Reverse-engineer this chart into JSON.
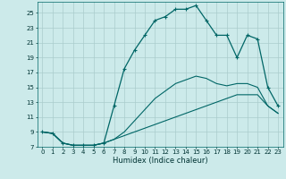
{
  "xlabel": "Humidex (Indice chaleur)",
  "bg_color": "#cceaea",
  "grid_color": "#aacccc",
  "line_color": "#006666",
  "xlim": [
    -0.5,
    23.5
  ],
  "ylim": [
    7,
    26.5
  ],
  "yticks": [
    7,
    9,
    11,
    13,
    15,
    17,
    19,
    21,
    23,
    25
  ],
  "xticks": [
    0,
    1,
    2,
    3,
    4,
    5,
    6,
    7,
    8,
    9,
    10,
    11,
    12,
    13,
    14,
    15,
    16,
    17,
    18,
    19,
    20,
    21,
    22,
    23
  ],
  "curve_top_x": [
    0,
    1,
    2,
    3,
    4,
    5,
    6,
    7,
    8,
    9,
    10,
    11,
    12,
    13,
    14,
    15,
    16,
    17,
    18,
    19,
    20,
    21,
    22,
    23
  ],
  "curve_top_y": [
    9,
    8.8,
    7.5,
    7.2,
    7.2,
    7.2,
    7.5,
    12.5,
    17.5,
    20.0,
    22.0,
    24.0,
    24.5,
    25.5,
    25.5,
    26.0,
    24.0,
    22.0,
    22.0,
    19.0,
    22.0,
    21.5,
    15.0,
    12.5
  ],
  "curve_mid_x": [
    0,
    1,
    2,
    3,
    4,
    5,
    6,
    7,
    8,
    9,
    10,
    11,
    12,
    13,
    14,
    15,
    16,
    17,
    18,
    19,
    20,
    21,
    22,
    23
  ],
  "curve_mid_y": [
    9,
    8.8,
    7.5,
    7.2,
    7.2,
    7.2,
    7.5,
    8.0,
    9.0,
    10.5,
    12.0,
    13.5,
    14.5,
    15.5,
    16.0,
    16.5,
    16.2,
    15.5,
    15.2,
    15.5,
    15.5,
    15.0,
    12.5,
    11.5
  ],
  "curve_bot_x": [
    0,
    1,
    2,
    3,
    4,
    5,
    6,
    7,
    8,
    9,
    10,
    11,
    12,
    13,
    14,
    15,
    16,
    17,
    18,
    19,
    20,
    21,
    22,
    23
  ],
  "curve_bot_y": [
    9,
    8.8,
    7.5,
    7.2,
    7.2,
    7.2,
    7.5,
    8.0,
    8.5,
    9.0,
    9.5,
    10.0,
    10.5,
    11.0,
    11.5,
    12.0,
    12.5,
    13.0,
    13.5,
    14.0,
    14.0,
    14.0,
    12.5,
    11.5
  ]
}
